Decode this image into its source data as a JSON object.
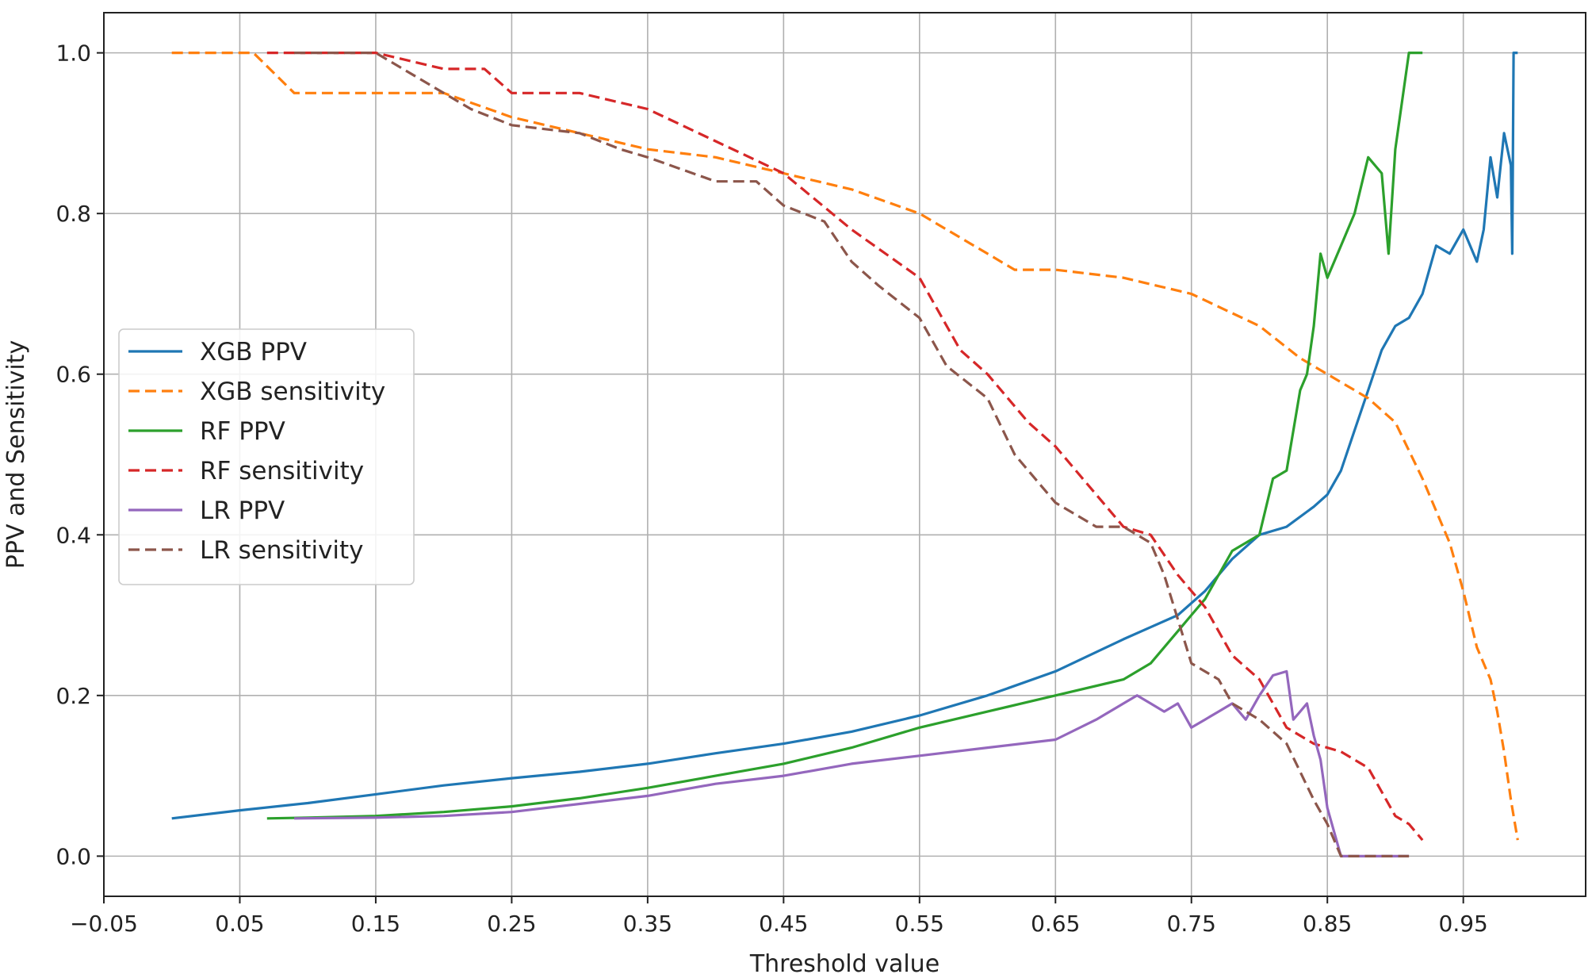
{
  "chart_data": {
    "type": "line",
    "title": "",
    "xlabel": "Threshold value",
    "ylabel": "PPV and Sensitivity",
    "xlim": [
      -0.05,
      1.04
    ],
    "ylim": [
      -0.05,
      1.05
    ],
    "xticks": [
      -0.05,
      0.05,
      0.15,
      0.25,
      0.35,
      0.45,
      0.55,
      0.65,
      0.75,
      0.85,
      0.95
    ],
    "xtick_labels": [
      "−0.05",
      "0.05",
      "0.15",
      "0.25",
      "0.35",
      "0.45",
      "0.55",
      "0.65",
      "0.75",
      "0.85",
      "0.95"
    ],
    "yticks": [
      0.0,
      0.2,
      0.4,
      0.6,
      0.8,
      1.0
    ],
    "ytick_labels": [
      "0.0",
      "0.2",
      "0.4",
      "0.6",
      "0.8",
      "1.0"
    ],
    "grid": true,
    "legend_position": "center-left",
    "series": [
      {
        "name": "XGB PPV",
        "color": "#1f77b4",
        "dash": "solid",
        "x": [
          0.0,
          0.05,
          0.1,
          0.15,
          0.2,
          0.25,
          0.3,
          0.35,
          0.4,
          0.45,
          0.5,
          0.55,
          0.6,
          0.65,
          0.7,
          0.72,
          0.74,
          0.76,
          0.78,
          0.8,
          0.82,
          0.84,
          0.85,
          0.86,
          0.87,
          0.88,
          0.89,
          0.9,
          0.91,
          0.92,
          0.93,
          0.94,
          0.95,
          0.96,
          0.965,
          0.97,
          0.975,
          0.98,
          0.985,
          0.986,
          0.987,
          0.99
        ],
        "y": [
          0.047,
          0.057,
          0.066,
          0.077,
          0.088,
          0.097,
          0.105,
          0.115,
          0.128,
          0.14,
          0.155,
          0.175,
          0.2,
          0.23,
          0.27,
          0.285,
          0.3,
          0.33,
          0.37,
          0.4,
          0.41,
          0.435,
          0.45,
          0.48,
          0.53,
          0.58,
          0.63,
          0.66,
          0.67,
          0.7,
          0.76,
          0.75,
          0.78,
          0.74,
          0.78,
          0.87,
          0.82,
          0.9,
          0.86,
          0.75,
          1.0,
          1.0
        ]
      },
      {
        "name": "XGB sensitivity",
        "color": "#ff7f0e",
        "dash": "dashed",
        "x": [
          0.0,
          0.06,
          0.09,
          0.15,
          0.2,
          0.25,
          0.3,
          0.35,
          0.4,
          0.45,
          0.5,
          0.55,
          0.6,
          0.62,
          0.65,
          0.7,
          0.75,
          0.8,
          0.83,
          0.86,
          0.88,
          0.9,
          0.92,
          0.94,
          0.95,
          0.96,
          0.97,
          0.975,
          0.98,
          0.985,
          0.99
        ],
        "y": [
          1.0,
          1.0,
          0.95,
          0.95,
          0.95,
          0.92,
          0.9,
          0.88,
          0.87,
          0.85,
          0.83,
          0.8,
          0.75,
          0.73,
          0.73,
          0.72,
          0.7,
          0.66,
          0.62,
          0.59,
          0.57,
          0.54,
          0.47,
          0.39,
          0.33,
          0.26,
          0.22,
          0.18,
          0.13,
          0.07,
          0.02
        ]
      },
      {
        "name": "RF PPV",
        "color": "#2ca02c",
        "dash": "solid",
        "x": [
          0.07,
          0.1,
          0.15,
          0.2,
          0.25,
          0.3,
          0.35,
          0.4,
          0.45,
          0.5,
          0.55,
          0.6,
          0.65,
          0.7,
          0.72,
          0.74,
          0.75,
          0.76,
          0.78,
          0.8,
          0.81,
          0.82,
          0.83,
          0.835,
          0.84,
          0.845,
          0.85,
          0.86,
          0.87,
          0.88,
          0.89,
          0.895,
          0.9,
          0.91,
          0.92
        ],
        "y": [
          0.047,
          0.048,
          0.05,
          0.055,
          0.062,
          0.072,
          0.085,
          0.1,
          0.115,
          0.135,
          0.16,
          0.18,
          0.2,
          0.22,
          0.24,
          0.28,
          0.3,
          0.32,
          0.38,
          0.4,
          0.47,
          0.48,
          0.58,
          0.6,
          0.66,
          0.75,
          0.72,
          0.76,
          0.8,
          0.87,
          0.85,
          0.75,
          0.88,
          1.0,
          1.0
        ]
      },
      {
        "name": "RF sensitivity",
        "color": "#d62728",
        "dash": "dashed",
        "x": [
          0.07,
          0.1,
          0.15,
          0.2,
          0.23,
          0.25,
          0.3,
          0.35,
          0.4,
          0.45,
          0.5,
          0.55,
          0.58,
          0.6,
          0.63,
          0.65,
          0.68,
          0.7,
          0.72,
          0.74,
          0.76,
          0.78,
          0.8,
          0.82,
          0.84,
          0.86,
          0.88,
          0.9,
          0.91,
          0.92
        ],
        "y": [
          1.0,
          1.0,
          1.0,
          0.98,
          0.98,
          0.95,
          0.95,
          0.93,
          0.89,
          0.85,
          0.78,
          0.72,
          0.63,
          0.6,
          0.54,
          0.51,
          0.45,
          0.41,
          0.4,
          0.35,
          0.31,
          0.25,
          0.22,
          0.16,
          0.14,
          0.13,
          0.11,
          0.05,
          0.04,
          0.02
        ]
      },
      {
        "name": "LR PPV",
        "color": "#9467bd",
        "dash": "solid",
        "x": [
          0.09,
          0.15,
          0.2,
          0.25,
          0.3,
          0.35,
          0.4,
          0.45,
          0.5,
          0.55,
          0.6,
          0.65,
          0.68,
          0.7,
          0.71,
          0.72,
          0.73,
          0.74,
          0.75,
          0.76,
          0.77,
          0.78,
          0.79,
          0.8,
          0.81,
          0.82,
          0.825,
          0.83,
          0.835,
          0.84,
          0.845,
          0.85,
          0.86,
          0.88,
          0.9,
          0.91
        ],
        "y": [
          0.047,
          0.048,
          0.05,
          0.055,
          0.065,
          0.075,
          0.09,
          0.1,
          0.115,
          0.125,
          0.135,
          0.145,
          0.17,
          0.19,
          0.2,
          0.19,
          0.18,
          0.19,
          0.16,
          0.17,
          0.18,
          0.19,
          0.17,
          0.2,
          0.225,
          0.23,
          0.17,
          0.18,
          0.19,
          0.15,
          0.12,
          0.06,
          0.0,
          0.0,
          0.0,
          0.0
        ]
      },
      {
        "name": "LR sensitivity",
        "color": "#8c564b",
        "dash": "dashed",
        "x": [
          0.09,
          0.12,
          0.15,
          0.18,
          0.2,
          0.22,
          0.25,
          0.3,
          0.33,
          0.35,
          0.4,
          0.43,
          0.45,
          0.48,
          0.5,
          0.52,
          0.55,
          0.57,
          0.6,
          0.62,
          0.65,
          0.68,
          0.7,
          0.72,
          0.73,
          0.75,
          0.77,
          0.78,
          0.8,
          0.82,
          0.84,
          0.85,
          0.86,
          0.88,
          0.9,
          0.91
        ],
        "y": [
          1.0,
          1.0,
          1.0,
          0.97,
          0.95,
          0.93,
          0.91,
          0.9,
          0.88,
          0.87,
          0.84,
          0.84,
          0.81,
          0.79,
          0.74,
          0.71,
          0.67,
          0.61,
          0.57,
          0.5,
          0.44,
          0.41,
          0.41,
          0.39,
          0.35,
          0.24,
          0.22,
          0.19,
          0.17,
          0.14,
          0.07,
          0.04,
          0.0,
          0.0,
          0.0,
          0.0
        ]
      }
    ]
  }
}
